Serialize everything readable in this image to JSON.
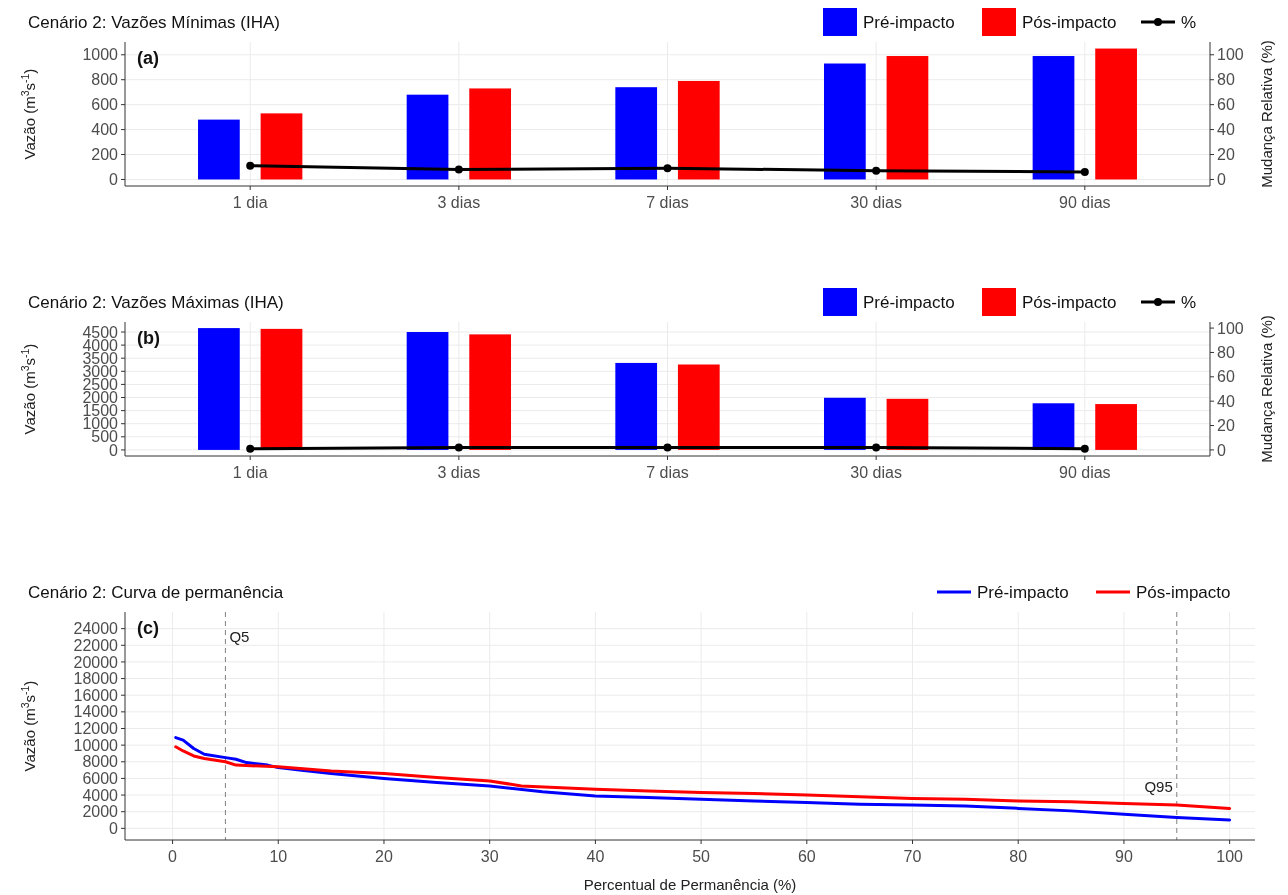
{
  "chart_data": [
    {
      "type": "bar",
      "title": "Cenário 2: Vazões Mínimas (IHA)",
      "ylabel": "Vazão (m$^{3}$s$^{-1}$)",
      "y2label": "Mudança Relativa (%)",
      "annotations": [
        "(a)"
      ],
      "categories": [
        "1 dia",
        "3 dias",
        "7 dias",
        "30 dias",
        "90 dias"
      ],
      "series": [
        {
          "name": "Pré-impacto",
          "color": "#0000ff",
          "values": [
            480,
            680,
            740,
            930,
            990
          ]
        },
        {
          "name": "Pós-impacto",
          "color": "#ff0000",
          "values": [
            530,
            730,
            790,
            990,
            1050
          ]
        },
        {
          "name": "%",
          "type": "line",
          "axis": "y2",
          "color": "#000000",
          "marker": "circle",
          "values": [
            11,
            8,
            9,
            7,
            6
          ]
        }
      ],
      "ylim": [
        -52.5,
        1102.5
      ],
      "yticks": [
        0,
        200,
        400,
        600,
        800,
        1000
      ],
      "y2lim": [
        -5.25,
        110.25
      ],
      "y2ticks": [
        0,
        20,
        40,
        60,
        80,
        100
      ],
      "grid": true,
      "legend": "top right"
    },
    {
      "type": "bar",
      "title": "Cenário 2: Vazões Máximas (IHA)",
      "ylabel": "Vazão (m$^{3}$s$^{-1}$)",
      "y2label": "Mudança Relativa (%)",
      "annotations": [
        "(b)"
      ],
      "categories": [
        "1 dia",
        "3 dias",
        "7 dias",
        "30 dias",
        "90 dias"
      ],
      "series": [
        {
          "name": "Pré-impacto",
          "color": "#0000ff",
          "values": [
            4650,
            4500,
            3320,
            1990,
            1780
          ]
        },
        {
          "name": "Pós-impacto",
          "color": "#ff0000",
          "values": [
            4620,
            4410,
            3260,
            1950,
            1750
          ]
        },
        {
          "name": "%",
          "type": "line",
          "axis": "y2",
          "color": "#000000",
          "marker": "circle",
          "values": [
            1,
            2,
            2,
            2,
            1
          ]
        }
      ],
      "ylim": [
        -232.5,
        4882.5
      ],
      "yticks": [
        0,
        500,
        1000,
        1500,
        2000,
        2500,
        3000,
        3500,
        4000,
        4500
      ],
      "y2lim": [
        -5,
        105
      ],
      "y2ticks": [
        0,
        20,
        40,
        60,
        80,
        100
      ],
      "grid": true,
      "legend": "top right"
    },
    {
      "type": "line",
      "title": "Cenário 2: Curva de permanência",
      "xlabel": "Percentual de Permanência (%)",
      "ylabel": "Vazão (m$^{3}$s$^{-1}$)",
      "annotations": [
        "(c)"
      ],
      "series": [
        {
          "name": "Pré-impacto",
          "color": "#0000ff",
          "x": [
            0.3,
            1,
            2,
            3,
            5,
            6,
            7,
            9,
            10,
            12,
            15,
            20,
            25,
            30,
            35,
            40,
            45,
            50,
            55,
            60,
            65,
            70,
            75,
            80,
            85,
            90,
            95,
            100
          ],
          "values": [
            10900,
            10600,
            9600,
            8900,
            8500,
            8300,
            7900,
            7600,
            7300,
            7000,
            6600,
            6000,
            5500,
            5100,
            4400,
            3900,
            3700,
            3500,
            3300,
            3100,
            2900,
            2800,
            2700,
            2400,
            2100,
            1700,
            1300,
            1000
          ]
        },
        {
          "name": "Pós-impacto",
          "color": "#ff0000",
          "x": [
            0.3,
            1,
            2,
            3,
            5,
            6,
            10,
            15,
            20,
            25,
            30,
            33,
            40,
            45,
            50,
            55,
            60,
            65,
            70,
            75,
            80,
            85,
            90,
            95,
            100
          ],
          "values": [
            9800,
            9300,
            8700,
            8400,
            8000,
            7600,
            7400,
            6900,
            6600,
            6100,
            5700,
            5100,
            4700,
            4500,
            4300,
            4200,
            4000,
            3800,
            3600,
            3500,
            3300,
            3200,
            3000,
            2800,
            2400
          ]
        }
      ],
      "xlim": [
        -4.5,
        102.4
      ],
      "xticks": [
        0,
        10,
        20,
        30,
        40,
        50,
        60,
        70,
        80,
        90,
        100
      ],
      "ylim": [
        -1400,
        26000
      ],
      "yticks": [
        0,
        2000,
        4000,
        6000,
        8000,
        10000,
        12000,
        14000,
        16000,
        18000,
        20000,
        22000,
        24000
      ],
      "ref_lines": [
        {
          "axis": "x",
          "value": 5,
          "label": "Q5",
          "color": "#808080",
          "line_style": "dashed"
        },
        {
          "axis": "x",
          "value": 95,
          "label": "Q95",
          "color": "#808080",
          "line_style": "dashed"
        }
      ],
      "grid": true,
      "legend": "top right",
      "line_style": "solid"
    }
  ]
}
